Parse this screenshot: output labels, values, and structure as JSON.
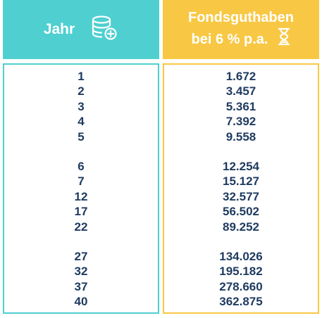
{
  "header": {
    "year_label": "Jahr",
    "fund_label_line1": "Fondsguthaben",
    "fund_label_line2": "bei 6 % p.a.",
    "year_icon": "database-add-icon",
    "fund_icon": "hourglass-icon",
    "colors": {
      "teal": "#4fcfd0",
      "yellow": "#f8c844",
      "text": "#1e3a5f"
    }
  },
  "rows": [
    {
      "year": "1",
      "value": "1.672"
    },
    {
      "year": "2",
      "value": "3.457"
    },
    {
      "year": "3",
      "value": "5.361"
    },
    {
      "year": "4",
      "value": "7.392"
    },
    {
      "year": "5",
      "value": "9.558"
    },
    {
      "year": "6",
      "value": "12.254"
    },
    {
      "year": "7",
      "value": "15.127"
    },
    {
      "year": "12",
      "value": "32.577"
    },
    {
      "year": "17",
      "value": "56.502"
    },
    {
      "year": "22",
      "value": "89.252"
    },
    {
      "year": "27",
      "value": "134.026"
    },
    {
      "year": "32",
      "value": "195.182"
    },
    {
      "year": "37",
      "value": "278.660"
    },
    {
      "year": "40",
      "value": "362.875"
    }
  ]
}
